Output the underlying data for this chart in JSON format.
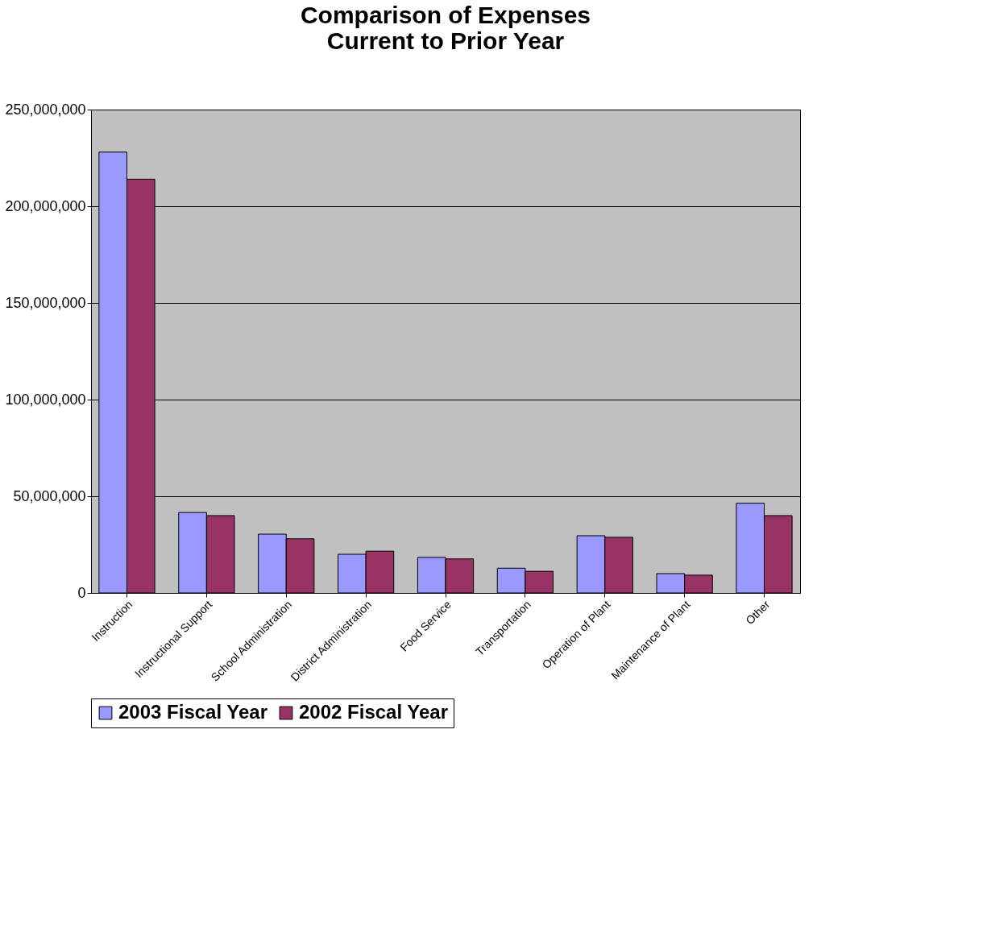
{
  "chart_data": {
    "type": "bar",
    "title": "Comparison of Expenses\nCurrent to Prior Year",
    "categories": [
      "Instruction",
      "Instructional Support",
      "School Administration",
      "District Administration",
      "Food Service",
      "Transportation",
      "Operation of Plant",
      "Maintenance of Plant",
      "Other"
    ],
    "series": [
      {
        "name": "2003 Fiscal Year",
        "color": "#9999ff",
        "values": [
          228000000,
          41600000,
          30400000,
          20000000,
          18400000,
          12800000,
          29600000,
          10000000,
          46400000
        ]
      },
      {
        "name": "2002 Fiscal Year",
        "color": "#993366",
        "values": [
          214000000,
          40000000,
          28000000,
          21600000,
          17600000,
          11200000,
          28800000,
          9200000,
          40000000
        ]
      }
    ],
    "ylim": [
      0,
      250000000
    ],
    "yticks": [
      0,
      {
        "value": 50000000,
        "label": "50,000,000"
      },
      {
        "value": 100000000,
        "label": "100,000,000"
      },
      {
        "value": 150000000,
        "label": "150,000,000"
      },
      {
        "value": 200000000,
        "label": "200,000,000"
      },
      {
        "value": 250000000,
        "label": "250,000,000"
      }
    ],
    "grid": "y",
    "legend": "bottom"
  }
}
